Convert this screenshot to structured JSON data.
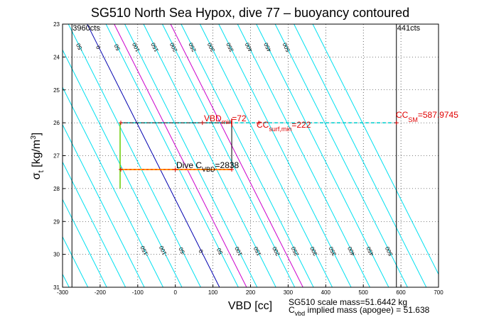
{
  "chart_data": {
    "type": "line",
    "title": "SG510 North Sea Hypox, dive 77 – buoyancy contoured",
    "xlabel": "VBD [cc]",
    "ylabel_main": "σ",
    "ylabel_sub": "t",
    "ylabel_unit_pre": " [kg/m",
    "ylabel_unit_sup": "3",
    "ylabel_unit_post": "]",
    "xlim": [
      -300,
      700
    ],
    "ylim": [
      31,
      23
    ],
    "xticks": [
      -300,
      -200,
      -100,
      0,
      100,
      200,
      300,
      400,
      500,
      600,
      700
    ],
    "yticks": [
      23,
      24,
      25,
      26,
      27,
      28,
      29,
      30,
      31
    ],
    "grid": true,
    "contour_step": 50,
    "contour_range": [
      -500,
      600
    ],
    "contour_slope_cc_per_sigma": 44,
    "contour_anchor_sigma": 28.33,
    "contour_labels_top": [
      -450,
      -400,
      -350,
      -300,
      -250,
      -200,
      -150,
      -100,
      -50,
      0,
      50,
      100,
      150,
      200,
      250,
      300,
      350,
      400,
      450,
      500
    ],
    "contour_labels_bottom": [
      -150,
      -100,
      -50,
      0,
      50,
      100,
      150,
      200,
      250,
      300,
      350,
      400,
      450,
      500
    ],
    "highlight_contours": [
      {
        "value": 0,
        "color": "#0000b0"
      },
      {
        "value": 72,
        "color": "#cc00cc"
      },
      {
        "value": 222,
        "color": "#cc00cc"
      }
    ],
    "vertical_lines": [
      {
        "x": -275,
        "label": "3960cts"
      },
      {
        "x": 588,
        "label": "441cts"
      }
    ],
    "box": {
      "x0": -145,
      "x1": 150,
      "y_top": 26,
      "y_bottom": 27.42
    },
    "dive_trace": {
      "descent_sigma": 26,
      "apogee_sigma": 27.42,
      "xmin": -145,
      "xmax": 150
    },
    "annotations": {
      "vbd_pre": "VBD",
      "vbd_sub": "min",
      "vbd_post": "=72",
      "ccsurf_pre": "CC",
      "ccsurf_sub": "surf,min",
      "ccsurf_post": "=222",
      "ccsm_pre": "CC",
      "ccsm_sub": "SM",
      "ccsm_post": "=587.9745",
      "dive_pre": "Dive C",
      "dive_sub": "VBD",
      "dive_post": "=2838"
    },
    "footer": {
      "line1": "SG510 scale mass=51.6442 kg",
      "line2_pre": "C",
      "line2_sub": "vbd",
      "line2_post": " implied mass (apogee) = 51.638"
    }
  }
}
